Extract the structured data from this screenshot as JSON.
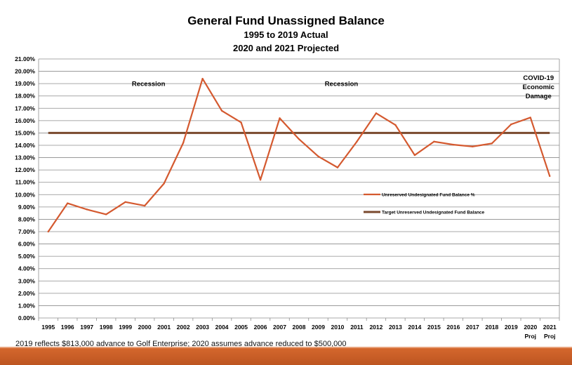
{
  "chart_data": {
    "type": "line",
    "title": "General Fund Unassigned Balance",
    "subtitle": [
      "1995 to 2019 Actual",
      "2020 and 2021 Projected"
    ],
    "categories": [
      "1995",
      "1996",
      "1997",
      "1998",
      "1999",
      "2000",
      "2001",
      "2002",
      "2003",
      "2004",
      "2005",
      "2006",
      "2007",
      "2008",
      "2009",
      "2010",
      "2011",
      "2012",
      "2013",
      "2014",
      "2015",
      "2016",
      "2017",
      "2018",
      "2019",
      "2020",
      "2021"
    ],
    "category_sublabels": {
      "2020": "Proj",
      "2021": "Proj"
    },
    "yticks": [
      "0.00%",
      "1.00%",
      "2.00%",
      "3.00%",
      "4.00%",
      "5.00%",
      "6.00%",
      "7.00%",
      "8.00%",
      "9.00%",
      "10.00%",
      "11.00%",
      "12.00%",
      "13.00%",
      "14.00%",
      "15.00%",
      "16.00%",
      "17.00%",
      "18.00%",
      "19.00%",
      "20.00%",
      "21.00%"
    ],
    "ylim": [
      0,
      21
    ],
    "grid": true,
    "legend_position": "center-right",
    "series": [
      {
        "name": "Unreserved Undesignated Fund Balance %",
        "color": "#d4592f",
        "values": [
          7.0,
          9.3,
          8.8,
          8.4,
          9.4,
          9.1,
          10.9,
          14.2,
          19.4,
          16.8,
          15.85,
          11.2,
          16.2,
          14.5,
          13.1,
          12.2,
          14.3,
          16.6,
          15.65,
          13.2,
          14.3,
          14.05,
          13.9,
          14.15,
          15.7,
          16.25,
          11.5
        ]
      },
      {
        "name": "Target Unreserved Undesignated Fund Balance",
        "color": "#7a4a2e",
        "values": [
          15,
          15,
          15,
          15,
          15,
          15,
          15,
          15,
          15,
          15,
          15,
          15,
          15,
          15,
          15,
          15,
          15,
          15,
          15,
          15,
          15,
          15,
          15,
          15,
          15,
          15,
          15
        ]
      }
    ],
    "annotations": [
      {
        "text": [
          "Recession"
        ],
        "x": "2000",
        "y": 18.8
      },
      {
        "text": [
          "Recession"
        ],
        "x": "2010",
        "y": 18.8
      },
      {
        "text": [
          "COVID-19",
          "Economic",
          "Damage"
        ],
        "x": "2021",
        "y": 19.3
      }
    ]
  },
  "footnote": "2019 reflects $813,000 advance to Golf Enterprise; 2020 assumes advance reduced to $500,000"
}
